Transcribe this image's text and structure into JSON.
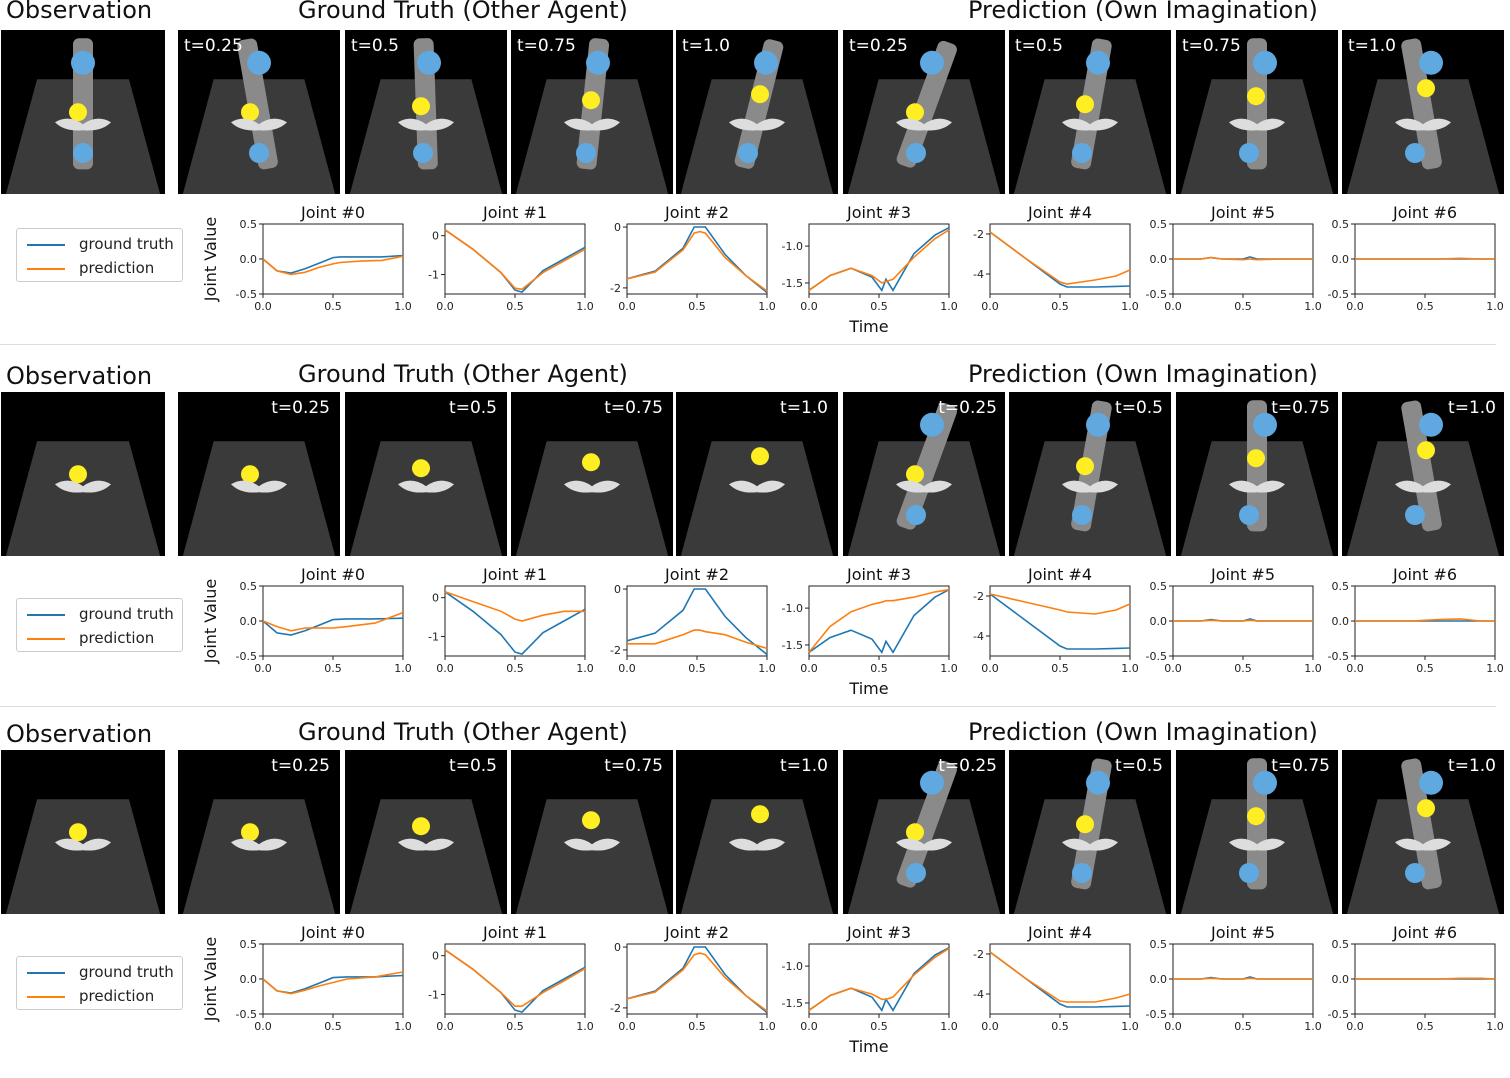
{
  "figure": {
    "headers": {
      "observation": "Observation",
      "ground_truth": "Ground Truth (Other Agent)",
      "prediction": "Prediction (Own Imagination)"
    },
    "time_labels": [
      "t=0.25",
      "t=0.5",
      "t=0.75",
      "t=1.0"
    ],
    "legend": {
      "ground_truth": "ground truth",
      "prediction": "prediction"
    },
    "ylabel": "Joint Value",
    "xlabel": "Time",
    "colors": {
      "ground_truth": "#1f77b4",
      "prediction": "#ff7f0e",
      "tile_bg": "#000000",
      "floor": "#3a3a3a",
      "target": "#ffee22",
      "arm": "#8a8a8a",
      "arm_cap": "#5fa8e0"
    }
  },
  "chart_data": [
    {
      "type": "line",
      "row": 1,
      "joints": [
        {
          "title": "Joint #0",
          "ylim": [
            -0.5,
            0.5
          ],
          "yticks": [
            "0.5",
            "0.0",
            "-0.5"
          ],
          "ytick_vals": [
            0.5,
            0,
            -0.5
          ],
          "x": [
            0,
            0.1,
            0.2,
            0.3,
            0.4,
            0.5,
            0.55,
            0.7,
            0.85,
            1.0
          ],
          "gt": [
            0.0,
            -0.17,
            -0.2,
            -0.14,
            -0.06,
            0.02,
            0.03,
            0.03,
            0.03,
            0.05
          ],
          "pred": [
            0.0,
            -0.17,
            -0.22,
            -0.19,
            -0.12,
            -0.07,
            -0.05,
            -0.03,
            -0.02,
            0.04
          ]
        },
        {
          "title": "Joint #1",
          "ylim": [
            -1.5,
            0.3
          ],
          "yticks": [
            "0",
            "-1"
          ],
          "ytick_vals": [
            0,
            -1
          ],
          "x": [
            0,
            0.2,
            0.4,
            0.5,
            0.55,
            0.7,
            0.85,
            1.0
          ],
          "gt": [
            0.15,
            -0.35,
            -0.95,
            -1.4,
            -1.45,
            -0.9,
            -0.6,
            -0.3
          ],
          "pred": [
            0.15,
            -0.35,
            -0.95,
            -1.35,
            -1.38,
            -0.95,
            -0.65,
            -0.35
          ]
        },
        {
          "title": "Joint #2",
          "ylim": [
            -2.2,
            0.1
          ],
          "yticks": [
            "0",
            "-2"
          ],
          "ytick_vals": [
            0,
            -2
          ],
          "x": [
            0,
            0.2,
            0.4,
            0.48,
            0.52,
            0.56,
            0.7,
            0.85,
            1.0
          ],
          "gt": [
            -1.7,
            -1.45,
            -0.7,
            0.0,
            0.0,
            0.0,
            -0.9,
            -1.6,
            -2.15
          ],
          "pred": [
            -1.7,
            -1.48,
            -0.75,
            -0.2,
            -0.15,
            -0.2,
            -1.0,
            -1.6,
            -2.1
          ]
        },
        {
          "title": "Joint #3",
          "ylim": [
            -1.65,
            -0.7
          ],
          "yticks": [
            "-1.0",
            "-1.5"
          ],
          "ytick_vals": [
            -1.0,
            -1.5
          ],
          "x": [
            0,
            0.15,
            0.3,
            0.45,
            0.52,
            0.55,
            0.6,
            0.75,
            0.9,
            1.0
          ],
          "gt": [
            -1.6,
            -1.4,
            -1.3,
            -1.42,
            -1.6,
            -1.45,
            -1.6,
            -1.1,
            -0.85,
            -0.75
          ],
          "pred": [
            -1.6,
            -1.4,
            -1.3,
            -1.4,
            -1.5,
            -1.48,
            -1.45,
            -1.15,
            -0.9,
            -0.78
          ]
        },
        {
          "title": "Joint #4",
          "ylim": [
            -5,
            -1.5
          ],
          "yticks": [
            "-2",
            "-4"
          ],
          "ytick_vals": [
            -2,
            -4
          ],
          "x": [
            0,
            0.25,
            0.5,
            0.55,
            0.75,
            0.9,
            1.0
          ],
          "gt": [
            -1.9,
            -3.2,
            -4.5,
            -4.65,
            -4.65,
            -4.62,
            -4.6
          ],
          "pred": [
            -1.9,
            -3.2,
            -4.4,
            -4.5,
            -4.3,
            -4.1,
            -3.8
          ]
        },
        {
          "title": "Joint #5",
          "ylim": [
            -0.5,
            0.5
          ],
          "yticks": [
            "0.5",
            "0.0",
            "-0.5"
          ],
          "ytick_vals": [
            0.5,
            0,
            -0.5
          ],
          "x": [
            0,
            0.2,
            0.27,
            0.35,
            0.5,
            0.55,
            0.6,
            0.8,
            1.0
          ],
          "gt": [
            0,
            0,
            0.02,
            0,
            0,
            0.03,
            0,
            0,
            0
          ],
          "pred": [
            0,
            0,
            0.02,
            0,
            -0.01,
            0,
            -0.01,
            0,
            0
          ]
        },
        {
          "title": "Joint #6",
          "ylim": [
            -0.5,
            0.5
          ],
          "yticks": [
            "0.5",
            "0.0",
            "-0.5"
          ],
          "ytick_vals": [
            0.5,
            0,
            -0.5
          ],
          "x": [
            0,
            0.4,
            0.6,
            0.75,
            0.9,
            1.0
          ],
          "gt": [
            0,
            0,
            0,
            0,
            0,
            0
          ],
          "pred": [
            0,
            0,
            0,
            0.01,
            0,
            0
          ]
        }
      ]
    },
    {
      "type": "line",
      "row": 2,
      "joints": [
        {
          "title": "Joint #0",
          "ylim": [
            -0.5,
            0.5
          ],
          "yticks": [
            "0.5",
            "0.0",
            "-0.5"
          ],
          "ytick_vals": [
            0.5,
            0,
            -0.5
          ],
          "x": [
            0,
            0.1,
            0.2,
            0.3,
            0.4,
            0.5,
            0.6,
            0.8,
            1.0
          ],
          "gt": [
            0.0,
            -0.17,
            -0.2,
            -0.14,
            -0.06,
            0.02,
            0.03,
            0.03,
            0.04
          ],
          "pred": [
            0.0,
            -0.08,
            -0.14,
            -0.1,
            -0.1,
            -0.1,
            -0.08,
            -0.03,
            0.12
          ]
        },
        {
          "title": "Joint #1",
          "ylim": [
            -1.5,
            0.3
          ],
          "yticks": [
            "0",
            "-1"
          ],
          "ytick_vals": [
            0,
            -1
          ],
          "x": [
            0,
            0.2,
            0.4,
            0.5,
            0.55,
            0.7,
            0.85,
            1.0
          ],
          "gt": [
            0.15,
            -0.35,
            -0.95,
            -1.4,
            -1.45,
            -0.9,
            -0.6,
            -0.3
          ],
          "pred": [
            0.15,
            -0.1,
            -0.35,
            -0.55,
            -0.6,
            -0.45,
            -0.35,
            -0.35
          ]
        },
        {
          "title": "Joint #2",
          "ylim": [
            -2.2,
            0.1
          ],
          "yticks": [
            "0",
            "-2"
          ],
          "ytick_vals": [
            0,
            -2
          ],
          "x": [
            0,
            0.2,
            0.4,
            0.48,
            0.52,
            0.56,
            0.7,
            0.85,
            1.0
          ],
          "gt": [
            -1.7,
            -1.45,
            -0.7,
            0.0,
            0.0,
            0.0,
            -0.9,
            -1.6,
            -2.15
          ],
          "pred": [
            -1.8,
            -1.8,
            -1.5,
            -1.35,
            -1.35,
            -1.4,
            -1.5,
            -1.75,
            -1.95
          ]
        },
        {
          "title": "Joint #3",
          "ylim": [
            -1.65,
            -0.7
          ],
          "yticks": [
            "-1.0",
            "-1.5"
          ],
          "ytick_vals": [
            -1.0,
            -1.5
          ],
          "x": [
            0,
            0.15,
            0.3,
            0.45,
            0.52,
            0.55,
            0.6,
            0.75,
            0.9,
            1.0
          ],
          "gt": [
            -1.6,
            -1.4,
            -1.3,
            -1.42,
            -1.6,
            -1.45,
            -1.6,
            -1.1,
            -0.85,
            -0.75
          ],
          "pred": [
            -1.6,
            -1.25,
            -1.05,
            -0.95,
            -0.92,
            -0.9,
            -0.9,
            -0.85,
            -0.78,
            -0.75
          ]
        },
        {
          "title": "Joint #4",
          "ylim": [
            -5,
            -1.5
          ],
          "yticks": [
            "-2",
            "-4"
          ],
          "ytick_vals": [
            -2,
            -4
          ],
          "x": [
            0,
            0.25,
            0.5,
            0.55,
            0.75,
            0.9,
            1.0
          ],
          "gt": [
            -1.9,
            -3.2,
            -4.5,
            -4.65,
            -4.65,
            -4.62,
            -4.6
          ],
          "pred": [
            -1.9,
            -2.3,
            -2.7,
            -2.8,
            -2.9,
            -2.7,
            -2.4
          ]
        },
        {
          "title": "Joint #5",
          "ylim": [
            -0.5,
            0.5
          ],
          "yticks": [
            "0.5",
            "0.0",
            "-0.5"
          ],
          "ytick_vals": [
            0.5,
            0,
            -0.5
          ],
          "x": [
            0,
            0.2,
            0.27,
            0.35,
            0.5,
            0.55,
            0.6,
            0.8,
            1.0
          ],
          "gt": [
            0,
            0,
            0.02,
            0,
            0,
            0.03,
            0,
            0,
            0
          ],
          "pred": [
            0,
            0,
            0.01,
            0,
            0,
            0.01,
            0,
            0,
            0
          ]
        },
        {
          "title": "Joint #6",
          "ylim": [
            -0.5,
            0.5
          ],
          "yticks": [
            "0.5",
            "0.0",
            "-0.5"
          ],
          "ytick_vals": [
            0.5,
            0,
            -0.5
          ],
          "x": [
            0,
            0.4,
            0.6,
            0.75,
            0.9,
            1.0
          ],
          "gt": [
            0,
            0,
            0,
            0,
            0,
            0
          ],
          "pred": [
            0,
            0,
            0.02,
            0.03,
            0,
            0
          ]
        }
      ]
    },
    {
      "type": "line",
      "row": 3,
      "joints": [
        {
          "title": "Joint #0",
          "ylim": [
            -0.5,
            0.5
          ],
          "yticks": [
            "0.5",
            "0.0",
            "-0.5"
          ],
          "ytick_vals": [
            0.5,
            0,
            -0.5
          ],
          "x": [
            0,
            0.1,
            0.2,
            0.3,
            0.4,
            0.5,
            0.6,
            0.8,
            1.0
          ],
          "gt": [
            0.0,
            -0.17,
            -0.2,
            -0.14,
            -0.06,
            0.02,
            0.03,
            0.03,
            0.05
          ],
          "pred": [
            0.0,
            -0.17,
            -0.21,
            -0.16,
            -0.1,
            -0.05,
            0.0,
            0.03,
            0.1
          ]
        },
        {
          "title": "Joint #1",
          "ylim": [
            -1.5,
            0.3
          ],
          "yticks": [
            "0",
            "-1"
          ],
          "ytick_vals": [
            0,
            -1
          ],
          "x": [
            0,
            0.2,
            0.4,
            0.5,
            0.55,
            0.7,
            0.85,
            1.0
          ],
          "gt": [
            0.15,
            -0.35,
            -0.95,
            -1.4,
            -1.45,
            -0.9,
            -0.6,
            -0.3
          ],
          "pred": [
            0.15,
            -0.35,
            -0.95,
            -1.3,
            -1.3,
            -0.95,
            -0.65,
            -0.33
          ]
        },
        {
          "title": "Joint #2",
          "ylim": [
            -2.2,
            0.1
          ],
          "yticks": [
            "0",
            "-2"
          ],
          "ytick_vals": [
            0,
            -2
          ],
          "x": [
            0,
            0.2,
            0.4,
            0.48,
            0.52,
            0.56,
            0.7,
            0.85,
            1.0
          ],
          "gt": [
            -1.7,
            -1.45,
            -0.7,
            0.0,
            0.0,
            0.0,
            -0.9,
            -1.6,
            -2.15
          ],
          "pred": [
            -1.7,
            -1.48,
            -0.75,
            -0.25,
            -0.2,
            -0.25,
            -1.0,
            -1.6,
            -2.1
          ]
        },
        {
          "title": "Joint #3",
          "ylim": [
            -1.65,
            -0.7
          ],
          "yticks": [
            "-1.0",
            "-1.5"
          ],
          "ytick_vals": [
            -1.0,
            -1.5
          ],
          "x": [
            0,
            0.15,
            0.3,
            0.45,
            0.52,
            0.55,
            0.6,
            0.75,
            0.9,
            1.0
          ],
          "gt": [
            -1.6,
            -1.4,
            -1.3,
            -1.42,
            -1.6,
            -1.45,
            -1.6,
            -1.1,
            -0.85,
            -0.75
          ],
          "pred": [
            -1.6,
            -1.4,
            -1.3,
            -1.38,
            -1.45,
            -1.45,
            -1.42,
            -1.12,
            -0.88,
            -0.76
          ]
        },
        {
          "title": "Joint #4",
          "ylim": [
            -5,
            -1.5
          ],
          "yticks": [
            "-2",
            "-4"
          ],
          "ytick_vals": [
            -2,
            -4
          ],
          "x": [
            0,
            0.25,
            0.5,
            0.55,
            0.75,
            0.9,
            1.0
          ],
          "gt": [
            -1.9,
            -3.2,
            -4.5,
            -4.65,
            -4.65,
            -4.62,
            -4.6
          ],
          "pred": [
            -1.9,
            -3.2,
            -4.35,
            -4.4,
            -4.4,
            -4.2,
            -4.0
          ]
        },
        {
          "title": "Joint #5",
          "ylim": [
            -0.5,
            0.5
          ],
          "yticks": [
            "0.5",
            "0.0",
            "-0.5"
          ],
          "ytick_vals": [
            0.5,
            0,
            -0.5
          ],
          "x": [
            0,
            0.2,
            0.27,
            0.35,
            0.5,
            0.55,
            0.6,
            0.8,
            1.0
          ],
          "gt": [
            0,
            0,
            0.02,
            0,
            0,
            0.03,
            0,
            0,
            0
          ],
          "pred": [
            0,
            0,
            0.01,
            0,
            0,
            0.01,
            0,
            0,
            0
          ]
        },
        {
          "title": "Joint #6",
          "ylim": [
            -0.5,
            0.5
          ],
          "yticks": [
            "0.5",
            "0.0",
            "-0.5"
          ],
          "ytick_vals": [
            0.5,
            0,
            -0.5
          ],
          "x": [
            0,
            0.4,
            0.6,
            0.75,
            0.9,
            1.0
          ],
          "gt": [
            0,
            0,
            0,
            0,
            0,
            0
          ],
          "pred": [
            0,
            0,
            0,
            0.01,
            0.01,
            0
          ]
        }
      ]
    }
  ]
}
